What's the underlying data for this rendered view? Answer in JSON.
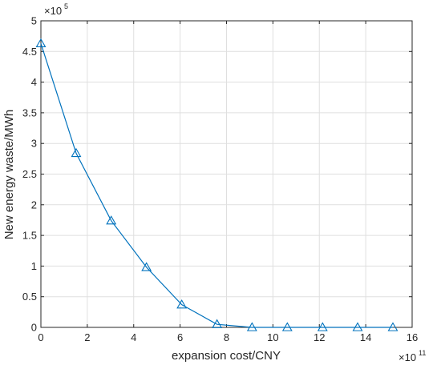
{
  "chart_data": {
    "type": "line",
    "xlabel": "expansion cost/CNY",
    "ylabel": "New energy waste/MWh",
    "xlim": [
      0,
      16
    ],
    "ylim": [
      0,
      5
    ],
    "x_multiplier_label": {
      "base": "×10",
      "exponent": "11"
    },
    "y_multiplier_label": {
      "base": "×10",
      "exponent": "5"
    },
    "x_ticks": [
      "0",
      "2",
      "4",
      "6",
      "8",
      "10",
      "12",
      "14",
      "16"
    ],
    "y_ticks": [
      "0",
      "0.5",
      "1",
      "1.5",
      "2",
      "2.5",
      "3",
      "3.5",
      "4",
      "4.5",
      "5"
    ],
    "grid": true,
    "marker": "triangle",
    "color": "#0072BD",
    "series": [
      {
        "x": [
          0,
          1.52,
          3.03,
          4.55,
          6.07,
          7.59,
          9.1,
          10.62,
          12.14,
          13.65,
          15.17
        ],
        "y": [
          4.63,
          2.84,
          1.74,
          0.98,
          0.37,
          0.05,
          0,
          0,
          0,
          0,
          0
        ]
      }
    ]
  }
}
